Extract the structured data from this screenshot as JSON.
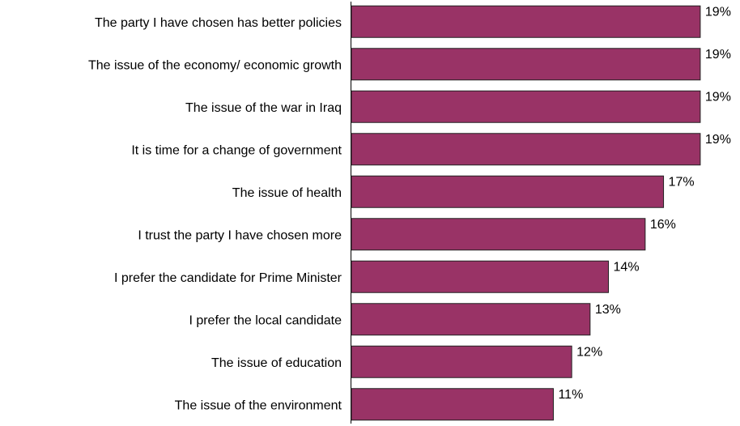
{
  "chart_data": {
    "type": "bar",
    "orientation": "horizontal",
    "categories": [
      "The party I have chosen has better policies",
      "The issue of the economy/ economic growth",
      "The issue of the war in Iraq",
      "It is time for a change of government",
      "The issue of health",
      "I trust the party I have chosen more",
      "I prefer the candidate for Prime Minister",
      "I prefer the local candidate",
      "The issue of education",
      "The issue of the environment"
    ],
    "values": [
      19,
      19,
      19,
      19,
      17,
      16,
      14,
      13,
      12,
      11
    ],
    "value_labels": [
      "19%",
      "19%",
      "19%",
      "19%",
      "17%",
      "16%",
      "14%",
      "13%",
      "12%",
      "11%"
    ],
    "colors": {
      "bar": "#993366"
    },
    "grid": false,
    "legend": false
  }
}
